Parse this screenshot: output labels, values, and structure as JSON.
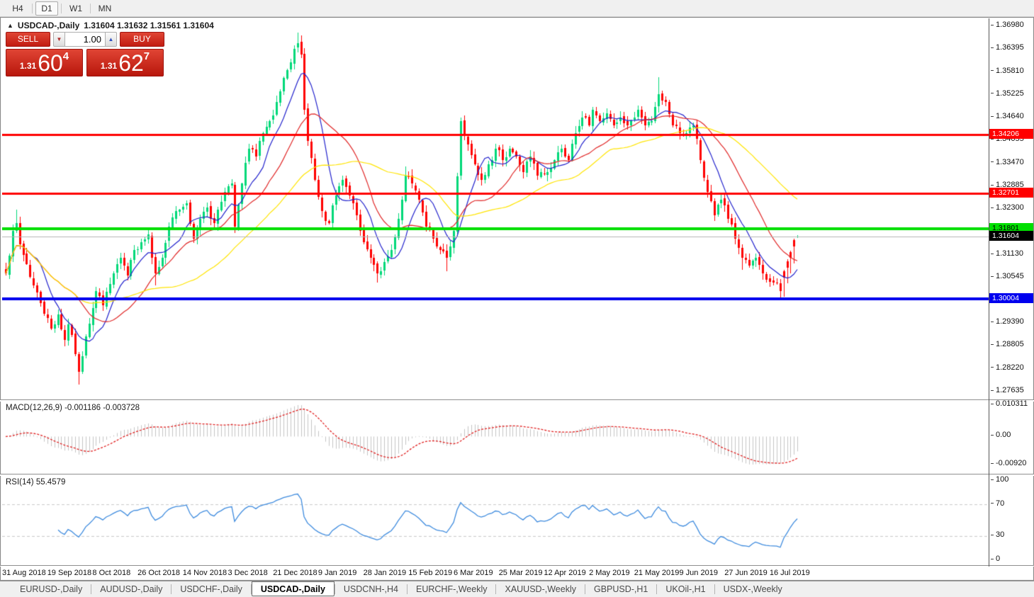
{
  "toolbar": {
    "timeframes": [
      {
        "label": "H4",
        "active": false
      },
      {
        "label": "D1",
        "active": true
      },
      {
        "label": "W1",
        "active": false
      },
      {
        "label": "MN",
        "active": false
      }
    ]
  },
  "header": {
    "collapse_icon": "▲",
    "title": "USDCAD-,Daily",
    "ohlc": "1.31604 1.31632 1.31561 1.31604"
  },
  "trade_panel": {
    "sell_label": "SELL",
    "buy_label": "BUY",
    "volume": "1.00",
    "spin_down_icon": "▼",
    "spin_up_icon": "▲",
    "sell_price": {
      "prefix": "1.31",
      "big": "60",
      "sup": "4"
    },
    "buy_price": {
      "prefix": "1.31",
      "big": "62",
      "sup": "7"
    }
  },
  "macd": {
    "label": "MACD(12,26,9) -0.001186 -0.003728"
  },
  "rsi": {
    "label": "RSI(14) 55.4579"
  },
  "tabs": [
    {
      "label": "EURUSD-,Daily",
      "active": false
    },
    {
      "label": "AUDUSD-,Daily",
      "active": false
    },
    {
      "label": "USDCHF-,Daily",
      "active": false
    },
    {
      "label": "USDCAD-,Daily",
      "active": true
    },
    {
      "label": "USDCNH-,H4",
      "active": false
    },
    {
      "label": "EURCHF-,Weekly",
      "active": false
    },
    {
      "label": "XAUUSD-,Weekly",
      "active": false
    },
    {
      "label": "GBPUSD-,H1",
      "active": false
    },
    {
      "label": "UKOil-,H1",
      "active": false
    },
    {
      "label": "USDX-,Weekly",
      "active": false
    }
  ],
  "chart_data": {
    "type": "candlestick+indicators",
    "symbol": "USDCAD-",
    "timeframe": "Daily",
    "current_bar": {
      "open": 1.31604,
      "high": 1.31632,
      "low": 1.31561,
      "close": 1.31604
    },
    "y_ticks": [
      "1.36980",
      "1.36395",
      "1.35810",
      "1.35225",
      "1.34640",
      "1.34055",
      "1.33470",
      "1.32885",
      "1.32300",
      "1.31130",
      "1.30545",
      "1.29390",
      "1.28805",
      "1.28220",
      "1.27635"
    ],
    "hlines": [
      {
        "price": 1.34206,
        "label": "1.34206",
        "color": "#FF0000",
        "text_color": "#FFFFFF",
        "thickness": 3
      },
      {
        "price": 1.32701,
        "label": "1.32701",
        "color": "#FF0000",
        "text_color": "#FFFFFF",
        "thickness": 3
      },
      {
        "price": 1.31801,
        "label": "1.31801",
        "color": "#00DF00",
        "text_color": "#000000",
        "thickness": 4
      },
      {
        "price": 1.30004,
        "label": "1.30004",
        "color": "#0000EE",
        "text_color": "#FFFFFF",
        "thickness": 4
      }
    ],
    "current_price": {
      "value": 1.31604,
      "label": "1.31604",
      "line_color": "#B4B4B4",
      "tag_bg": "#000000",
      "text_color": "#FFFFFF"
    },
    "x_labels": [
      "31 Aug 2018",
      "19 Sep 2018",
      "8 Oct 2018",
      "26 Oct 2018",
      "14 Nov 2018",
      "3 Dec 2018",
      "21 Dec 2018",
      "9 Jan 2019",
      "28 Jan 2019",
      "15 Feb 2019",
      "6 Mar 2019",
      "25 Mar 2019",
      "12 Apr 2019",
      "2 May 2019",
      "21 May 2019",
      "9 Jun 2019",
      "27 Jun 2019",
      "16 Jul 2019"
    ],
    "bars_per_label": 13,
    "close_anchors": [
      [
        0,
        1.3065
      ],
      [
        2,
        1.3175
      ],
      [
        3,
        1.3195
      ],
      [
        4,
        1.314
      ],
      [
        6,
        1.309
      ],
      [
        8,
        1.3035
      ],
      [
        10,
        1.299
      ],
      [
        13,
        1.2925
      ],
      [
        15,
        1.296
      ],
      [
        17,
        1.2895
      ],
      [
        18,
        1.2935
      ],
      [
        20,
        1.286
      ],
      [
        21,
        1.2815
      ],
      [
        23,
        1.2905
      ],
      [
        26,
        1.302
      ],
      [
        28,
        1.2985
      ],
      [
        31,
        1.3065
      ],
      [
        33,
        1.3105
      ],
      [
        35,
        1.306
      ],
      [
        37,
        1.3125
      ],
      [
        39,
        1.3145
      ],
      [
        41,
        1.3165
      ],
      [
        43,
        1.3065
      ],
      [
        45,
        1.3105
      ],
      [
        47,
        1.3185
      ],
      [
        49,
        1.3225
      ],
      [
        52,
        1.3245
      ],
      [
        54,
        1.3155
      ],
      [
        56,
        1.3205
      ],
      [
        58,
        1.3235
      ],
      [
        60,
        1.3195
      ],
      [
        63,
        1.3275
      ],
      [
        65,
        1.3295
      ],
      [
        66,
        1.3185
      ],
      [
        68,
        1.3295
      ],
      [
        70,
        1.3385
      ],
      [
        72,
        1.3365
      ],
      [
        74,
        1.3425
      ],
      [
        76,
        1.3455
      ],
      [
        78,
        1.3505
      ],
      [
        80,
        1.3565
      ],
      [
        82,
        1.3605
      ],
      [
        84,
        1.3655
      ],
      [
        85,
        1.3625
      ],
      [
        86,
        1.3485
      ],
      [
        87,
        1.3405
      ],
      [
        89,
        1.3305
      ],
      [
        91,
        1.3225
      ],
      [
        93,
        1.3195
      ],
      [
        95,
        1.3265
      ],
      [
        97,
        1.3305
      ],
      [
        99,
        1.3265
      ],
      [
        101,
        1.3215
      ],
      [
        103,
        1.3145
      ],
      [
        105,
        1.3105
      ],
      [
        107,
        1.3065
      ],
      [
        109,
        1.3095
      ],
      [
        111,
        1.3125
      ],
      [
        113,
        1.3205
      ],
      [
        115,
        1.3315
      ],
      [
        117,
        1.3295
      ],
      [
        119,
        1.3255
      ],
      [
        121,
        1.3185
      ],
      [
        123,
        1.3155
      ],
      [
        125,
        1.3125
      ],
      [
        127,
        1.3105
      ],
      [
        128,
        1.3135
      ],
      [
        129,
        1.3175
      ],
      [
        131,
        1.3455
      ],
      [
        133,
        1.3395
      ],
      [
        135,
        1.3345
      ],
      [
        137,
        1.3305
      ],
      [
        139,
        1.3345
      ],
      [
        141,
        1.3385
      ],
      [
        143,
        1.3355
      ],
      [
        145,
        1.3385
      ],
      [
        147,
        1.3365
      ],
      [
        149,
        1.3325
      ],
      [
        151,
        1.3365
      ],
      [
        153,
        1.3315
      ],
      [
        156,
        1.3325
      ],
      [
        158,
        1.3355
      ],
      [
        160,
        1.3385
      ],
      [
        162,
        1.3355
      ],
      [
        164,
        1.3425
      ],
      [
        166,
        1.3465
      ],
      [
        168,
        1.3445
      ],
      [
        169,
        1.3485
      ],
      [
        171,
        1.3455
      ],
      [
        173,
        1.3475
      ],
      [
        175,
        1.3445
      ],
      [
        177,
        1.3465
      ],
      [
        179,
        1.3445
      ],
      [
        181,
        1.3465
      ],
      [
        182,
        1.3485
      ],
      [
        184,
        1.3445
      ],
      [
        186,
        1.3455
      ],
      [
        188,
        1.3525
      ],
      [
        190,
        1.3505
      ],
      [
        192,
        1.3445
      ],
      [
        194,
        1.3425
      ],
      [
        196,
        1.3425
      ],
      [
        198,
        1.3445
      ],
      [
        200,
        1.3355
      ],
      [
        202,
        1.3275
      ],
      [
        204,
        1.3215
      ],
      [
        206,
        1.3255
      ],
      [
        208,
        1.3205
      ],
      [
        210,
        1.3155
      ],
      [
        212,
        1.3105
      ],
      [
        214,
        1.3085
      ],
      [
        216,
        1.3105
      ],
      [
        218,
        1.3065
      ],
      [
        220,
        1.3045
      ],
      [
        222,
        1.304
      ],
      [
        223,
        1.302
      ],
      [
        224,
        1.3055
      ],
      [
        225,
        1.308
      ],
      [
        226,
        1.3105
      ],
      [
        227,
        1.3135
      ],
      [
        228,
        1.31604
      ]
    ],
    "wick_highs": [
      [
        3,
        1.3228
      ],
      [
        41,
        1.3175
      ],
      [
        84,
        1.3682
      ],
      [
        85,
        1.3668
      ],
      [
        115,
        1.334
      ],
      [
        131,
        1.3462
      ],
      [
        164,
        1.3432
      ],
      [
        188,
        1.3568
      ],
      [
        227,
        1.318
      ]
    ],
    "wick_lows": [
      [
        21,
        1.2782
      ],
      [
        43,
        1.3035
      ],
      [
        107,
        1.3042
      ],
      [
        127,
        1.3072
      ],
      [
        212,
        1.3075
      ],
      [
        223,
        1.3005
      ],
      [
        225,
        1.3018
      ]
    ],
    "final_bear_run": [
      224,
      225,
      226,
      227
    ],
    "moving_averages": [
      {
        "period": 9,
        "color": "#2222CC"
      },
      {
        "period": 21,
        "color": "#E02828"
      },
      {
        "period": 45,
        "color": "#FFE400"
      }
    ],
    "macd": {
      "params": [
        12,
        26,
        9
      ],
      "main": -0.001186,
      "signal": -0.003728,
      "axis_labels": [
        {
          "v": 0.010311,
          "t": "0.010311"
        },
        {
          "v": 0,
          "t": "0.00"
        },
        {
          "v": -0.0092,
          "t": "-0.00920"
        }
      ],
      "range": [
        0.010311,
        -0.0092
      ],
      "hist_color": "#C4C4C4",
      "signal_color": "#E02020"
    },
    "rsi": {
      "period": 14,
      "value": 55.4579,
      "levels": [
        70,
        30
      ],
      "axis_labels": [
        {
          "v": 100,
          "t": "100"
        },
        {
          "v": 70,
          "t": "70"
        },
        {
          "v": 30,
          "t": "30"
        },
        {
          "v": 0,
          "t": "0"
        }
      ],
      "line_color": "#3E8BDE",
      "level_color": "#C8C8C8"
    },
    "colors": {
      "bull": "#00D878",
      "bear": "#FF0000",
      "background": "#FFFFFF"
    }
  }
}
